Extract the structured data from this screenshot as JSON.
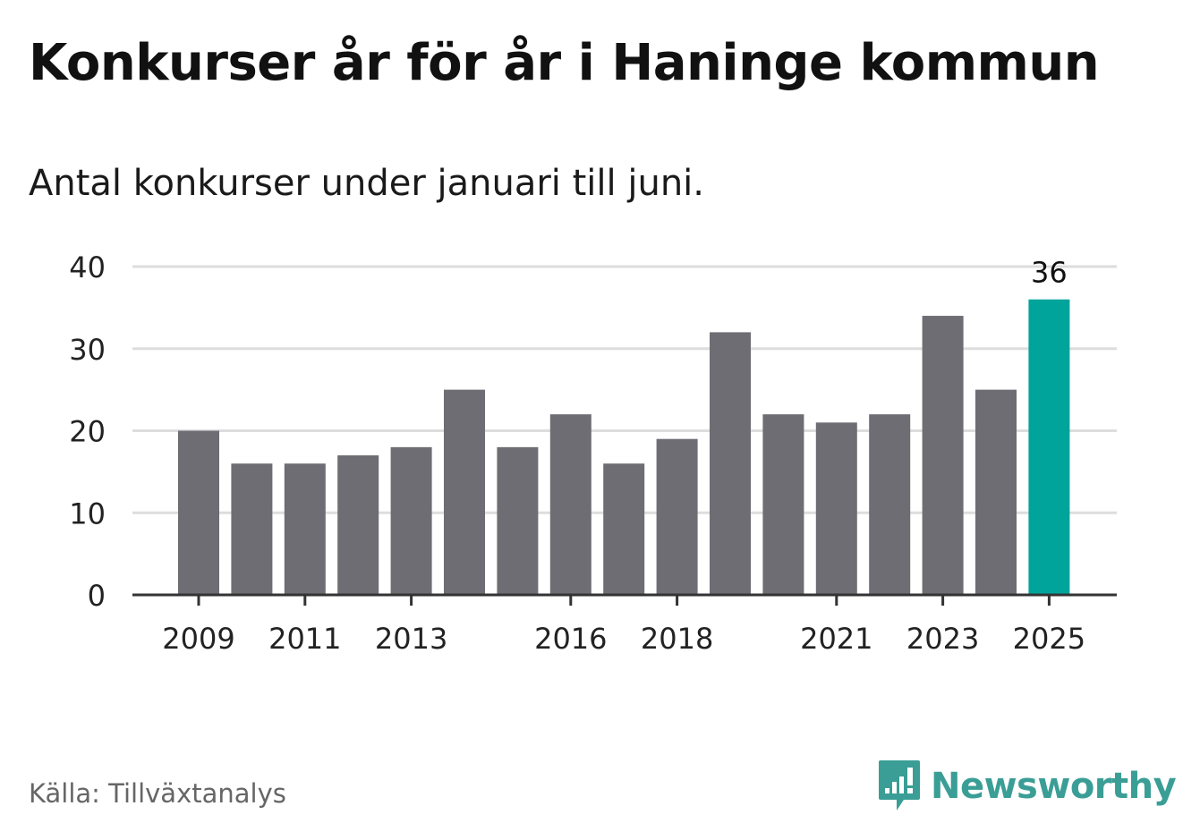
{
  "title": "Konkurser år för år i Haninge kommun",
  "subtitle": "Antal konkurser under januari till juni.",
  "source": "Källa: Tillväxtanalys",
  "brand": {
    "name": "Newsworthy",
    "icon": "newsworthy-logo-icon",
    "color": "#3a9e96"
  },
  "colors": {
    "bar": "#6e6d73",
    "highlight": "#00a49a",
    "grid": "#dddddd",
    "axis": "#333333"
  },
  "chart_data": {
    "type": "bar",
    "categories": [
      "2009",
      "2010",
      "2011",
      "2012",
      "2013",
      "2014",
      "2015",
      "2016",
      "2017",
      "2018",
      "2019",
      "2020",
      "2021",
      "2022",
      "2023",
      "2024",
      "2025"
    ],
    "values": [
      20,
      16,
      16,
      17,
      18,
      25,
      18,
      22,
      16,
      19,
      32,
      22,
      21,
      22,
      34,
      25,
      36
    ],
    "x_tick_labels": [
      "2009",
      "2011",
      "2013",
      "2016",
      "2018",
      "2021",
      "2023",
      "2025"
    ],
    "y_ticks": [
      0,
      10,
      20,
      30,
      40
    ],
    "ylim": [
      0,
      40
    ],
    "highlight_category": "2025",
    "data_labels": [
      {
        "category": "2025",
        "label": "36"
      }
    ],
    "grid": true,
    "legend": "none"
  }
}
